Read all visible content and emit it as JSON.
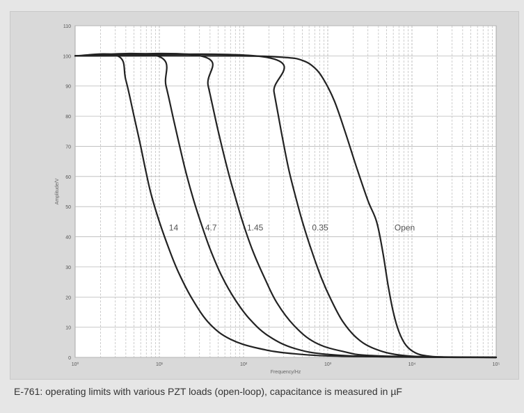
{
  "caption": "E-761: operating limits with various PZT loads (open-loop), capacitance is measured in µF",
  "colors": {
    "page_bg": "#e6e6e6",
    "panel_bg": "#d9d9d9",
    "plot_bg": "#ffffff",
    "curve": "#222222",
    "grid": "#b8b8b8"
  },
  "chart_data": {
    "type": "line",
    "title": "",
    "xlabel": "Frequency/Hz",
    "ylabel": "Amplitude/V",
    "xscale": "log",
    "xlim": [
      1,
      100000
    ],
    "ylim": [
      0,
      110
    ],
    "xticks": [
      1,
      10,
      100,
      1000,
      10000,
      100000
    ],
    "xtick_labels": [
      "10⁰",
      "10¹",
      "10²",
      "10³",
      "10⁴",
      "10⁵"
    ],
    "yticks": [
      0,
      10,
      20,
      30,
      40,
      50,
      60,
      70,
      80,
      90,
      100,
      110
    ],
    "grid": true,
    "series": [
      {
        "name": "14",
        "label": "14",
        "x": [
          1,
          3.2,
          4,
          5,
          6,
          7,
          8,
          10,
          13,
          17,
          25,
          40,
          70,
          150,
          400,
          2000,
          100000
        ],
        "y": [
          100,
          100,
          92,
          80,
          70,
          61,
          54,
          45,
          36,
          28,
          19,
          11,
          6,
          3,
          1.2,
          0.3,
          0
        ]
      },
      {
        "name": "4.7",
        "label": "4.7",
        "x": [
          1,
          9.5,
          12,
          15,
          20,
          25,
          30,
          40,
          55,
          80,
          120,
          200,
          400,
          1000,
          5000,
          100000
        ],
        "y": [
          100,
          100,
          90,
          78,
          63,
          53,
          46,
          36,
          27,
          19,
          12.5,
          7,
          3,
          1,
          0.2,
          0
        ]
      },
      {
        "name": "1.45",
        "label": "1.45",
        "x": [
          1,
          31,
          38,
          50,
          65,
          80,
          100,
          130,
          180,
          250,
          400,
          700,
          1500,
          4000,
          100000
        ],
        "y": [
          100,
          100,
          90,
          75,
          62,
          53,
          44,
          35,
          26,
          18,
          10.5,
          5,
          2,
          0.5,
          0
        ]
      },
      {
        "name": "0.35",
        "label": "0.35",
        "x": [
          1,
          190,
          230,
          280,
          340,
          400,
          500,
          650,
          850,
          1100,
          1500,
          2200,
          3500,
          7000,
          20000,
          100000
        ],
        "y": [
          100,
          99.5,
          88,
          75,
          63,
          55,
          45,
          35,
          26,
          19,
          12,
          6.5,
          3,
          0.8,
          0.1,
          0
        ]
      },
      {
        "name": "Open",
        "label": "Open",
        "x": [
          1,
          80,
          300,
          500,
          700,
          900,
          1200,
          1600,
          2200,
          3000,
          3800,
          4500,
          5200,
          6000,
          7000,
          8500,
          11000,
          15000,
          25000,
          100000
        ],
        "y": [
          100,
          100,
          99.5,
          98.5,
          96,
          92,
          85,
          75,
          63,
          52,
          45,
          35,
          24,
          15,
          8.5,
          4,
          1.5,
          0.5,
          0.1,
          0
        ]
      }
    ],
    "label_positions": {
      "14": [
        13,
        43
      ],
      "4.7": [
        35,
        43
      ],
      "1.45": [
        110,
        43
      ],
      "0.35": [
        650,
        43
      ],
      "Open": [
        6200,
        43
      ]
    }
  }
}
